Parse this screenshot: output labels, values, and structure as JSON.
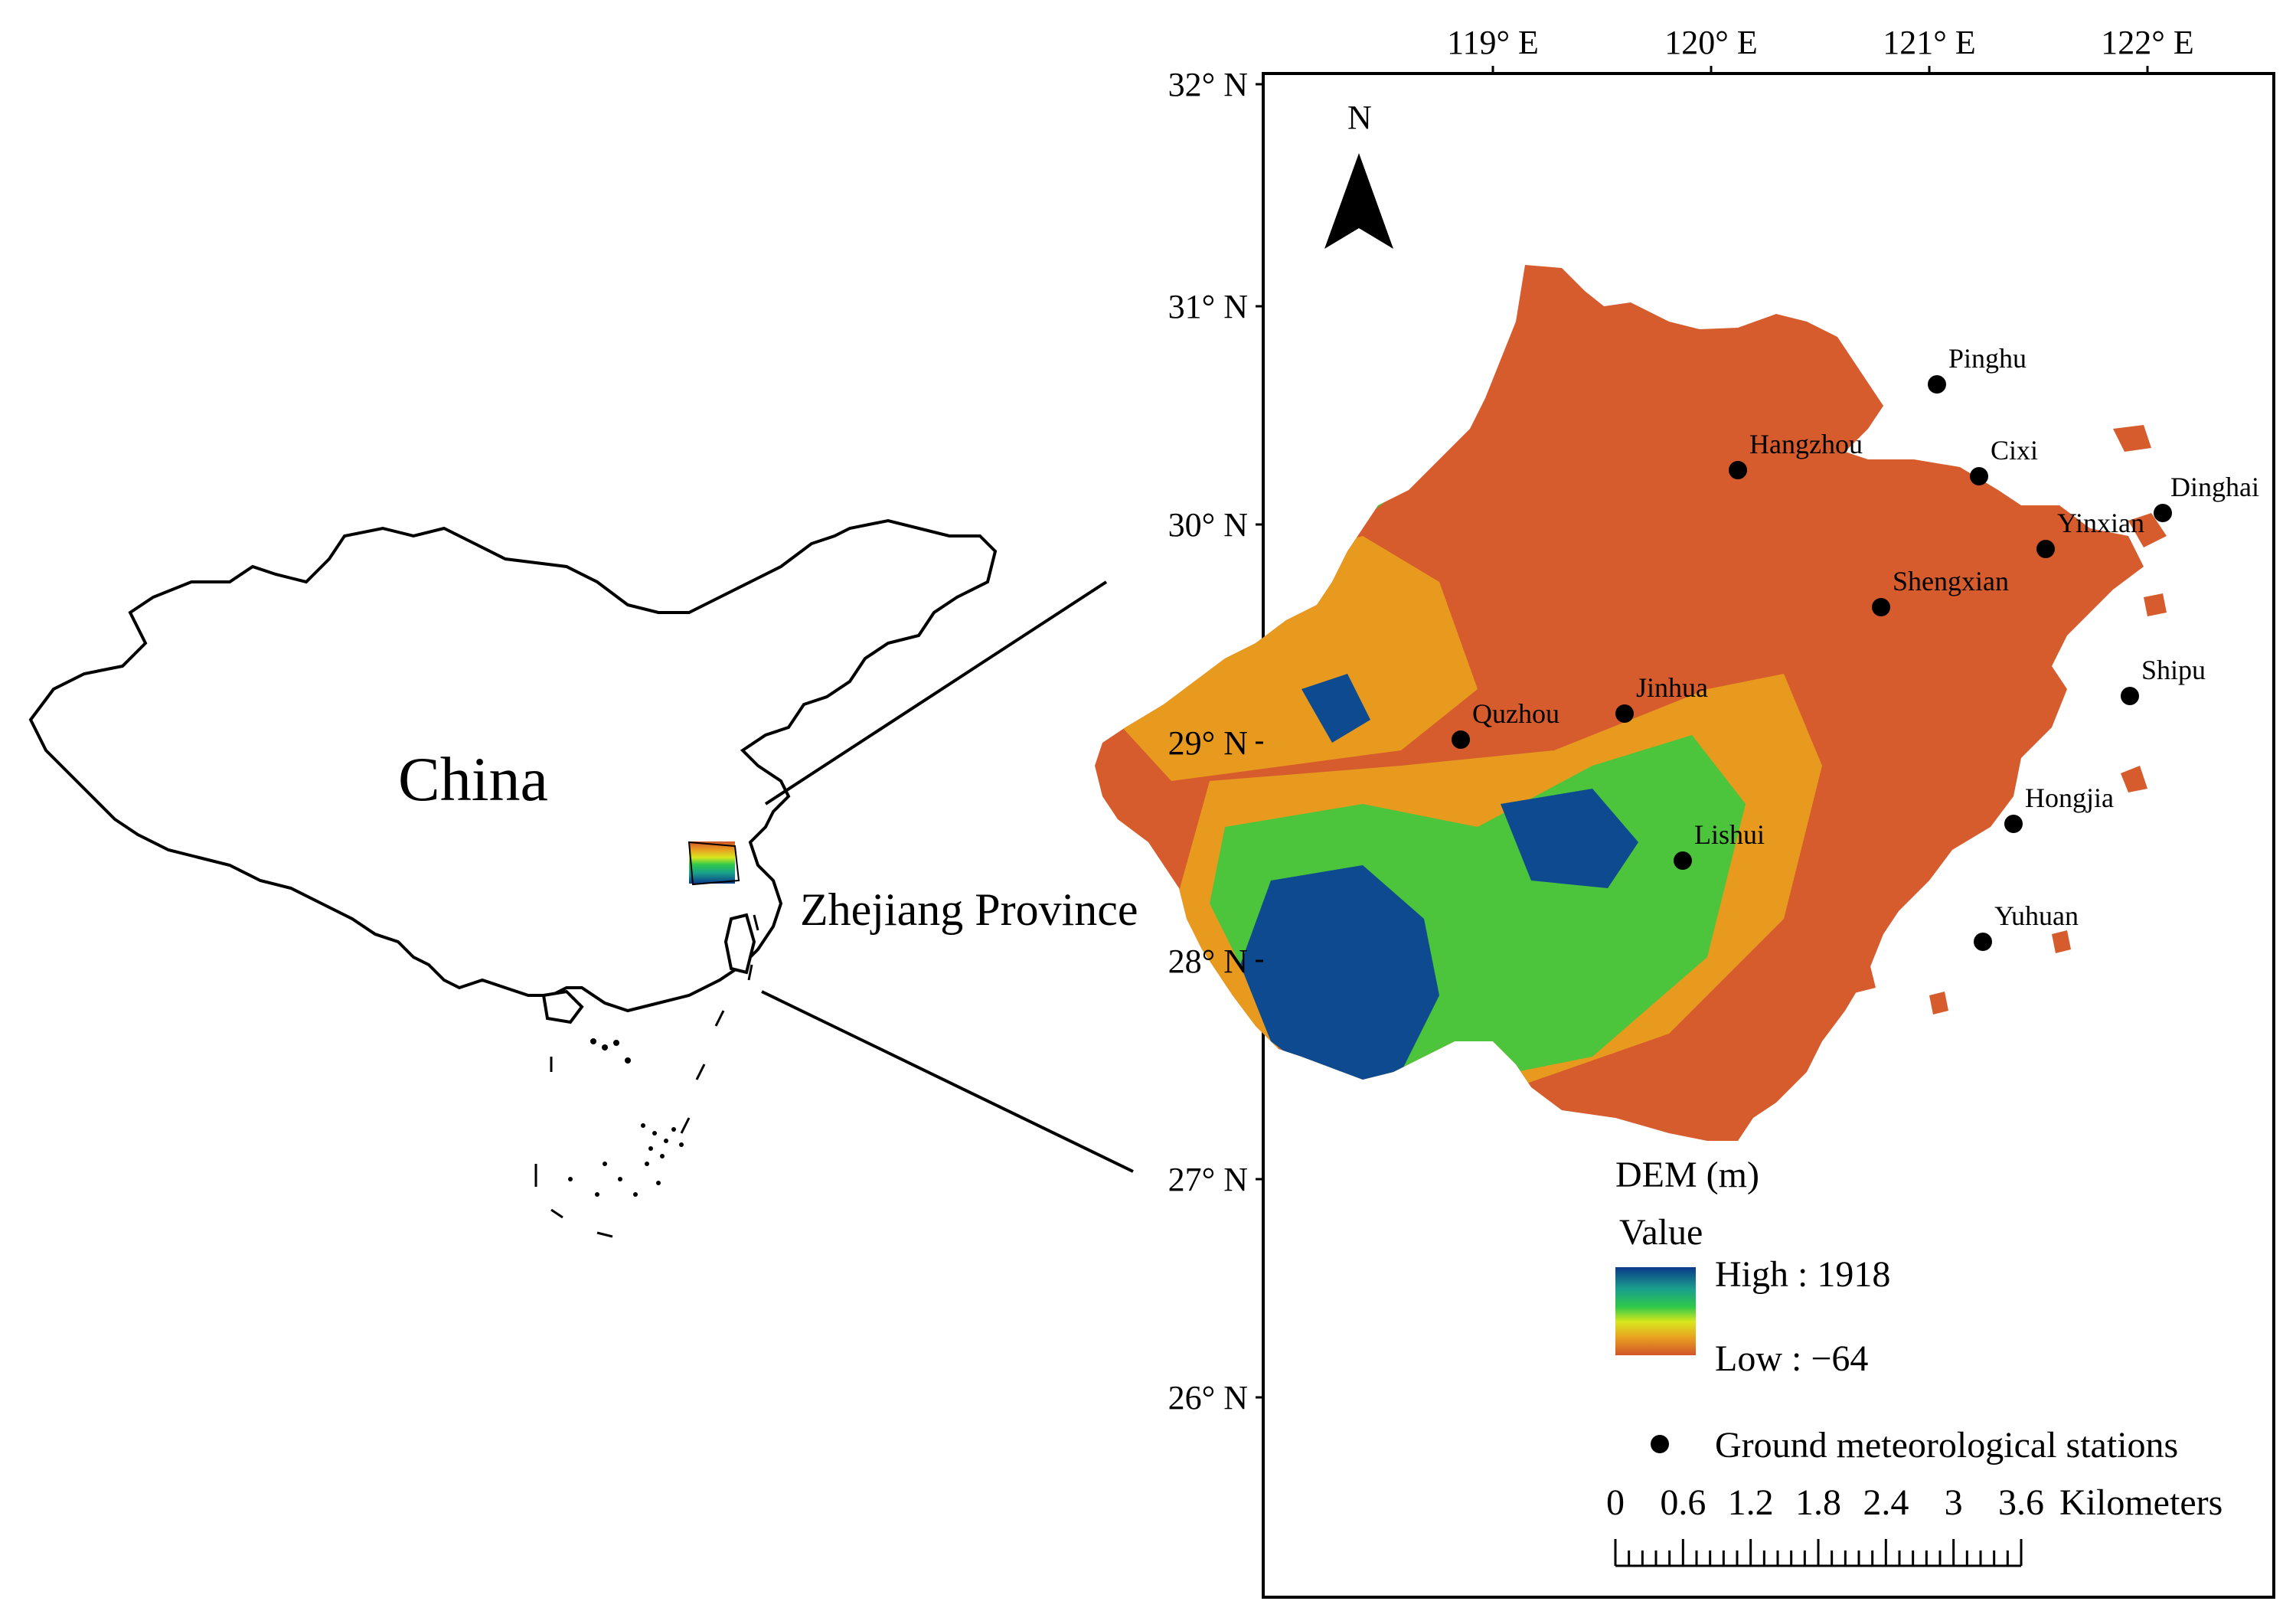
{
  "overview": {
    "country_label": "China",
    "region_label": "Zhejiang Province"
  },
  "axes": {
    "top_ticks": [
      "119° E",
      "120° E",
      "121° E",
      "122° E"
    ],
    "left_ticks": [
      "32° N",
      "31° N",
      "30° N",
      "29° N",
      "28° N",
      "27° N",
      "26° N"
    ]
  },
  "north_arrow": {
    "label": "N"
  },
  "stations": [
    {
      "name": "Pinghu"
    },
    {
      "name": "Hangzhou"
    },
    {
      "name": "Cixi"
    },
    {
      "name": "Dinghai"
    },
    {
      "name": "Yinxian"
    },
    {
      "name": "Shengxian"
    },
    {
      "name": "Shipu"
    },
    {
      "name": "Jinhua"
    },
    {
      "name": "Quzhou"
    },
    {
      "name": "Hongjia"
    },
    {
      "name": "Lishui"
    },
    {
      "name": "Yuhuan"
    }
  ],
  "legend": {
    "title": "DEM (m)",
    "value_label": "Value",
    "high_label": "High : 1918",
    "low_label": "Low : −64",
    "station_label": "Ground meteorological stations",
    "gradient_colors": [
      "#0a3a8a",
      "#1aa08c",
      "#2ec84a",
      "#d8e81e",
      "#e8a020",
      "#d2542a"
    ]
  },
  "scale_bar": {
    "ticks": [
      "0",
      "0.6",
      "1.2",
      "1.8",
      "2.4",
      "3",
      "3.6"
    ],
    "unit": "Kilometers"
  },
  "colors": {
    "lowland": "#d65c2e",
    "midland": "#e89a1e",
    "upland": "#4cc43c",
    "highland": "#0d4a8f"
  }
}
